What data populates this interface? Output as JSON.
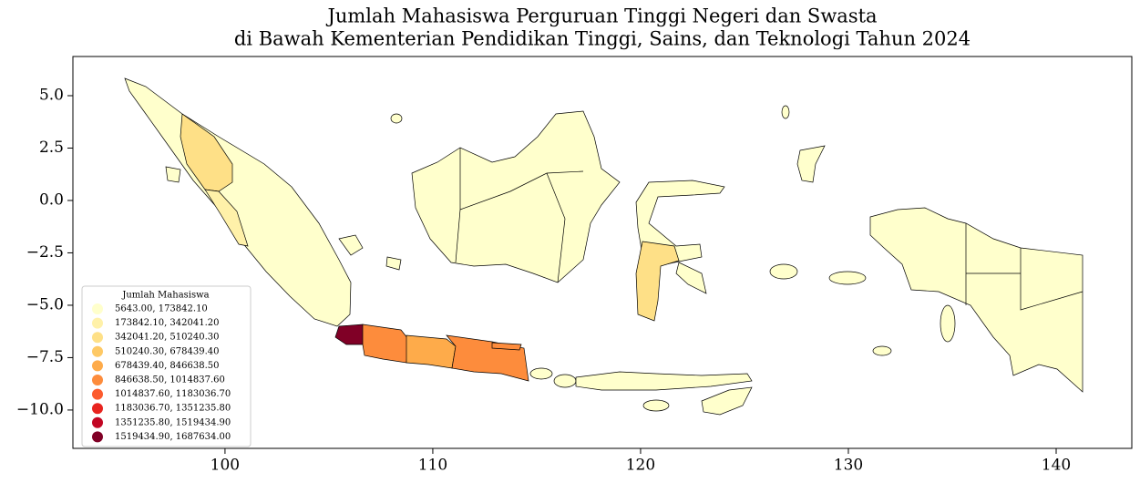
{
  "chart_data": {
    "type": "choropleth",
    "title": [
      "Jumlah Mahasiswa Perguruan Tinggi Negeri dan Swasta",
      "di Bawah Kementerian Pendidikan Tinggi, Sains, dan Teknologi Tahun 2024"
    ],
    "xlim": [
      92.68,
      143.64
    ],
    "ylim": [
      -11.83,
      6.87
    ],
    "xticks": [
      100,
      110,
      120,
      130,
      140
    ],
    "yticks": [
      {
        "value": 5,
        "label": "5.0"
      },
      {
        "value": 2.5,
        "label": "2.5"
      },
      {
        "value": 0,
        "label": "0.0"
      },
      {
        "value": -2.5,
        "label": "−2.5"
      },
      {
        "value": -5,
        "label": "−5.0"
      },
      {
        "value": -7.5,
        "label": "−7.5"
      },
      {
        "value": -10,
        "label": "−10.0"
      }
    ],
    "legend": {
      "title": "Jumlah Mahasiswa",
      "entries": [
        {
          "label": "5643.00,  173842.10",
          "color": "#ffffcc"
        },
        {
          "label": "173842.10,  342041.20",
          "color": "#fff1a9"
        },
        {
          "label": "342041.20,  510240.30",
          "color": "#fee087"
        },
        {
          "label": "510240.30,  678439.40",
          "color": "#fec965"
        },
        {
          "label": "678439.40,  846638.50",
          "color": "#feab4a"
        },
        {
          "label": "846638.50, 1014837.60",
          "color": "#fd8c3c"
        },
        {
          "label": "1014837.60, 1183036.70",
          "color": "#fc5b2e"
        },
        {
          "label": "1183036.70, 1351235.80",
          "color": "#e8241f"
        },
        {
          "label": "1351235.80, 1519434.90",
          "color": "#c20623"
        },
        {
          "label": "1519434.90, 1687634.00",
          "color": "#800026"
        }
      ]
    }
  }
}
